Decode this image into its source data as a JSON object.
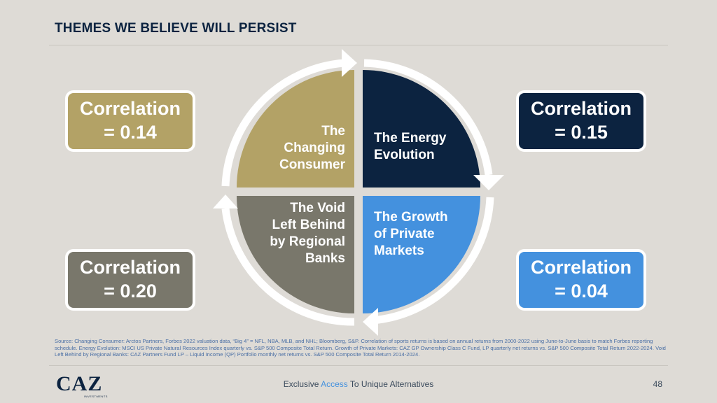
{
  "header": {
    "title": "THEMES WE BELIEVE WILL PERSIST"
  },
  "correlations": {
    "top_left": {
      "line1": "Correlation",
      "line2": "= 0.14"
    },
    "top_right": {
      "line1": "Correlation",
      "line2": "= 0.15"
    },
    "bottom_left": {
      "line1": "Correlation",
      "line2": "= 0.20"
    },
    "bottom_right": {
      "line1": "Correlation",
      "line2": "= 0.04"
    }
  },
  "themes": {
    "top_left": [
      "The",
      "Changing",
      "Consumer"
    ],
    "top_right": [
      "The Energy",
      "Evolution"
    ],
    "bottom_left": [
      "The Void",
      "Left Behind",
      "by Regional",
      "Banks"
    ],
    "bottom_right": [
      "The Growth",
      "of Private",
      "Markets"
    ]
  },
  "colors": {
    "gold": "#b3a266",
    "navy": "#0c2340",
    "gray": "#79776b",
    "blue": "#4491de",
    "background": "#dedbd6"
  },
  "footer": {
    "source": "Source: Changing Consumer: Arctos Partners, Forbes 2022 valuation data, “Big 4” = NFL, NBA, MLB, and NHL; Bloomberg, S&P. Correlation of sports returns is based on annual returns from 2000-2022 using June-to-June basis to match Forbes reporting schedule. Energy Evolution: MSCI US Private Natural Resources Index quarterly vs. S&P 500 Composite Total Return. Growth of Private Markets: CAZ GP Ownership Class C Fund, LP quarterly net returns vs. S&P 500 Composite Total Return 2022-2024. Void Left Behind by Regional Banks: CAZ Partners Fund LP – Liquid Income (QP) Portfolio monthly net returns vs. S&P 500 Composite Total Return 2014-2024.",
    "logo": "CAZ",
    "logo_sub": "INVESTMENTS",
    "tagline_pre": "Exclusive ",
    "tagline_accent": "Access",
    "tagline_post": " To Unique Alternatives",
    "page_number": "48"
  }
}
